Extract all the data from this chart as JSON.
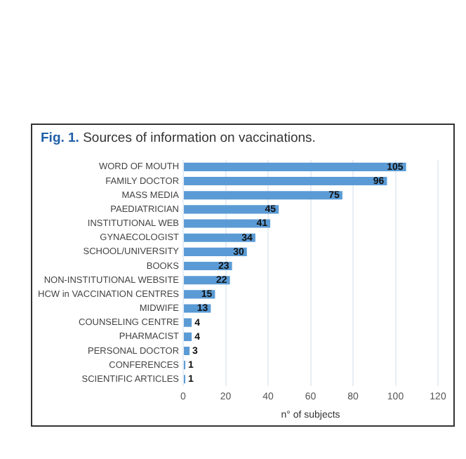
{
  "chart_data": {
    "type": "bar",
    "orientation": "horizontal",
    "title": "Fig. 1. Sources of information on vaccinations.",
    "xlabel": "n° of subjects",
    "categories": [
      "WORD OF MOUTH",
      "FAMILY DOCTOR",
      "MASS MEDIA",
      "PAEDIATRICIAN",
      "INSTITUTIONAL WEB",
      "GYNAECOLOGIST",
      "SCHOOL/UNIVERSITY",
      "BOOKS",
      "NON-INSTITUTIONAL WEBSITE",
      "HCW in VACCINATION CENTRES",
      "MIDWIFE",
      "COUNSELING CENTRE",
      "PHARMACIST",
      "PERSONAL DOCTOR",
      "CONFERENCES",
      "SCIENTIFIC ARTICLES"
    ],
    "values": [
      105,
      96,
      75,
      45,
      41,
      34,
      30,
      23,
      22,
      15,
      13,
      4,
      4,
      3,
      1,
      1
    ],
    "color": "#5b9bd5",
    "xlim": [
      0,
      120
    ],
    "xticks": [
      0,
      20,
      40,
      60,
      80,
      100,
      120
    ],
    "grid": "x",
    "legend": false,
    "data_labels": true
  }
}
